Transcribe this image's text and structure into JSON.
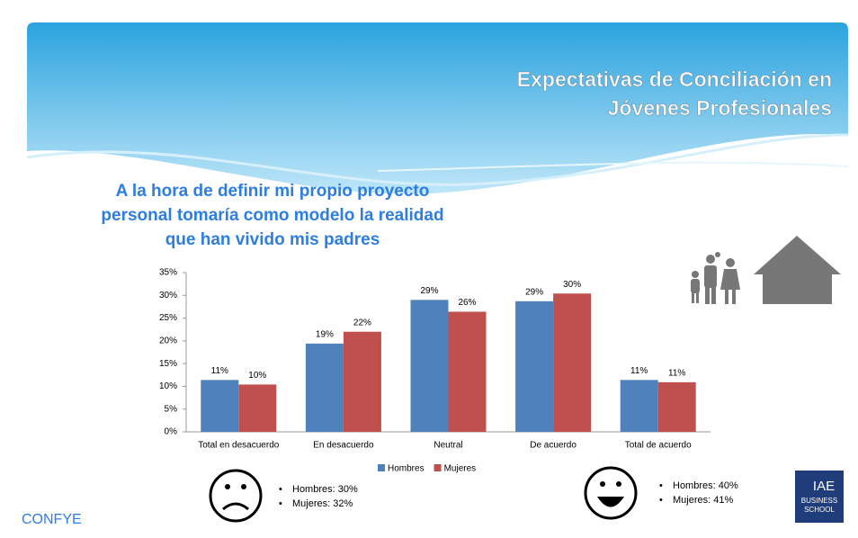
{
  "header": {
    "title": [
      "Expectativas de Conciliación en",
      "Jóvenes Profesionales"
    ]
  },
  "chart_data": {
    "type": "bar",
    "title": [
      "A la hora de definir mi propio proyecto",
      "personal tomaría como modelo la realidad",
      "que han vivido mis padres"
    ],
    "categories": [
      "Total en desacuerdo",
      "En desacuerdo",
      "Neutral",
      "De acuerdo",
      "Total de acuerdo"
    ],
    "series": [
      {
        "name": "Hombres",
        "color": "#4f81bd",
        "values": [
          11.4,
          19.4,
          29,
          28.7,
          11.4
        ],
        "value_labels": [
          "11%",
          "19%",
          "29%",
          "29%",
          "11%"
        ]
      },
      {
        "name": "Mujeres",
        "color": "#c0504d",
        "values": [
          10.4,
          22,
          26.4,
          30.4,
          10.9
        ],
        "value_labels": [
          "10%",
          "22%",
          "26%",
          "30%",
          "11%"
        ]
      }
    ],
    "ylim": [
      0,
      35
    ],
    "yticks": [
      {
        "value": 0,
        "label": "0%"
      },
      {
        "value": 5,
        "label": "5%"
      },
      {
        "value": 10,
        "label": "10%"
      },
      {
        "value": 15,
        "label": "15%"
      },
      {
        "value": 20,
        "label": "20%"
      },
      {
        "value": 25,
        "label": "25%"
      },
      {
        "value": 30,
        "label": "30%"
      },
      {
        "value": 35,
        "label": "35%"
      }
    ],
    "legend": "bottom"
  },
  "faces": {
    "negative": [
      "Hombres: 30%",
      "Mujeres: 32%"
    ],
    "positive": [
      "Hombres: 40%",
      "Mujeres: 41%"
    ]
  },
  "footer": "CONFYE",
  "logo": [
    "IAE",
    "BUSINESS",
    "SCHOOL"
  ]
}
